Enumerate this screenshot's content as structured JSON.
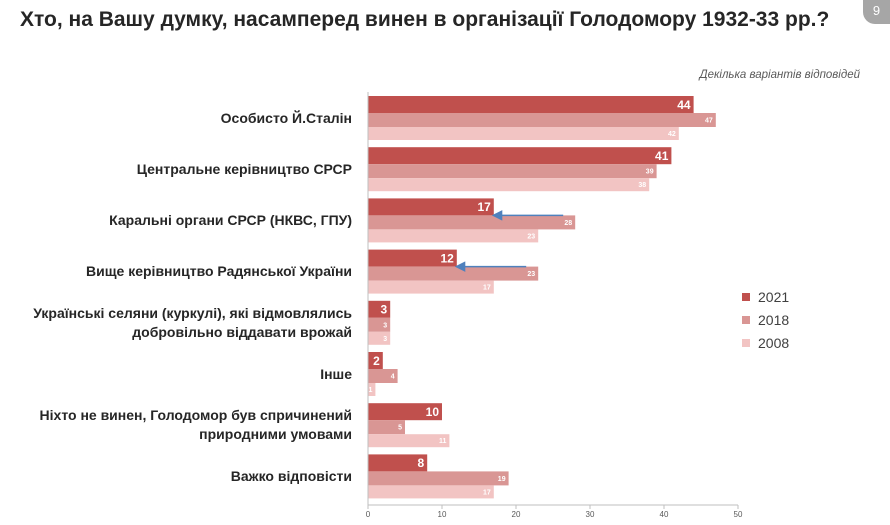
{
  "header": {
    "title": "Хто, на Вашу думку, насамперед винен в організації Голодомору 1932-33 рр.?",
    "page_number": "9",
    "subtitle": "Декілька варіантів відповідей"
  },
  "colors": {
    "2021": "#c0504d",
    "2018": "#d99694",
    "2008": "#f2c4c3",
    "arrow": "#4f81bd",
    "axis": "#bfbfbf"
  },
  "chart_data": {
    "type": "bar",
    "orientation": "horizontal",
    "title": "Хто, на Вашу думку, насамперед винен в організації Голодомору 1932-33 рр.?",
    "subtitle": "Декілька варіантів відповідей",
    "categories": [
      "Особисто Й.Сталін",
      "Центральне керівництво СРСР",
      "Каральні органи СРСР (НКВС, ГПУ)",
      "Вище керівництво Радянської України",
      "Українські селяни (куркулі), які відмовлялись добровільно віддавати врожай",
      "Інше",
      "Ніхто не винен, Голодомор був спричинений природними умовами",
      "Важко відповісти"
    ],
    "series": [
      {
        "name": "2021",
        "values": [
          44,
          41,
          17,
          12,
          3,
          2,
          10,
          8
        ]
      },
      {
        "name": "2018",
        "values": [
          47,
          39,
          28,
          23,
          3,
          4,
          5,
          19
        ]
      },
      {
        "name": "2008",
        "values": [
          42,
          38,
          23,
          17,
          3,
          1,
          11,
          17
        ]
      }
    ],
    "xlim": [
      0,
      50
    ],
    "xticks": [
      0,
      10,
      20,
      30,
      40,
      50
    ],
    "legend": [
      "2021",
      "2018",
      "2008"
    ],
    "legend_position": "right",
    "annotations": [
      {
        "type": "arrow",
        "category": "Каральні органи СРСР (НКВС, ГПУ)",
        "from_value": 28,
        "to_value": 17
      },
      {
        "type": "arrow",
        "category": "Вище керівництво Радянської України",
        "from_value": 23,
        "to_value": 12
      }
    ]
  }
}
